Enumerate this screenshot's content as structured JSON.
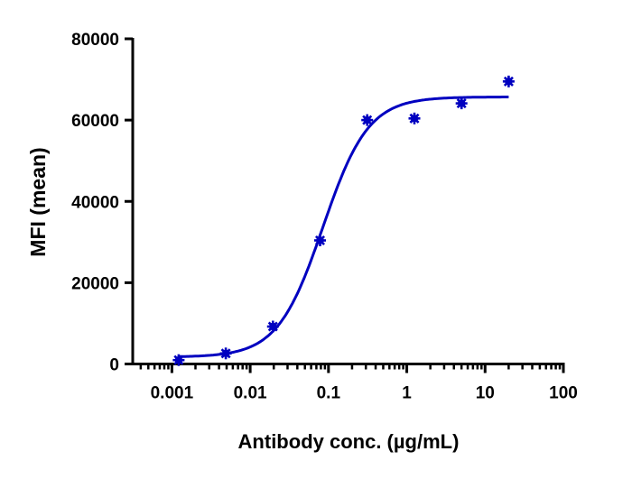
{
  "chart_data": {
    "type": "scatter",
    "title": "",
    "xlabel": "Antibody conc. (µg/mL)",
    "ylabel": "MFI (mean)",
    "x_scale": "log",
    "xlim": [
      0.000316,
      100
    ],
    "ylim": [
      0,
      80000
    ],
    "x_ticks": [
      0.001,
      0.01,
      0.1,
      1,
      10,
      100
    ],
    "x_tick_labels": [
      "0.001",
      "0.01",
      "0.1",
      "1",
      "10",
      "100"
    ],
    "y_ticks": [
      0,
      20000,
      40000,
      60000,
      80000
    ],
    "y_tick_labels": [
      "0",
      "20000",
      "40000",
      "60000",
      "80000"
    ],
    "grid": false,
    "legend": "none",
    "series": [
      {
        "x": [
          0.00122,
          0.00488,
          0.0195,
          0.078,
          0.3125,
          1.25,
          5,
          20
        ],
        "y": [
          950,
          2600,
          9200,
          30400,
          60000,
          60400,
          64100,
          69500
        ],
        "marker": "asterisk",
        "color": "#0000c0"
      }
    ],
    "fit": {
      "model": "4PL",
      "bottom": 1700,
      "top": 65700,
      "ec50": 0.085,
      "hill": 1.5,
      "x_range": [
        0.00122,
        20
      ],
      "color": "#0000c0"
    }
  }
}
